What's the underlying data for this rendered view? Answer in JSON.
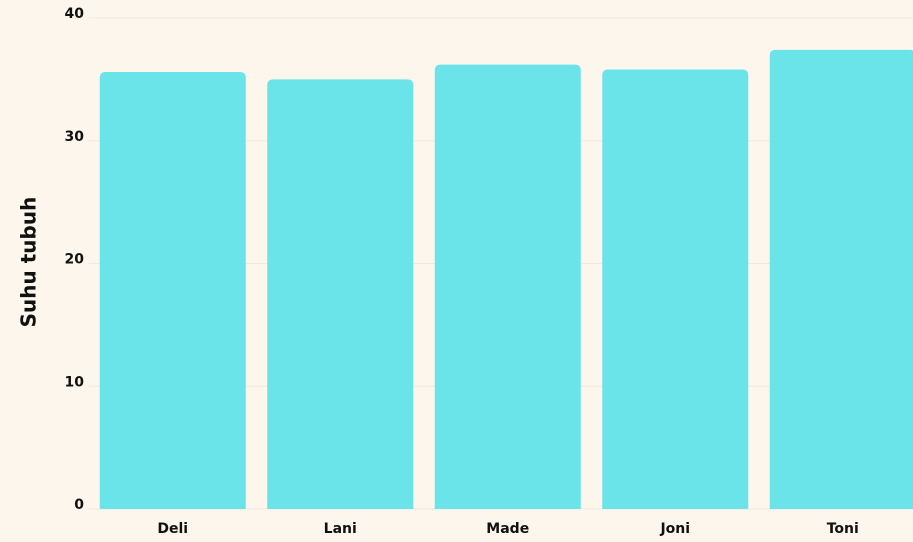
{
  "chart_data": {
    "type": "bar",
    "y_label": "Suhu tubuh",
    "categories": [
      "Deli",
      "Lani",
      "Made",
      "Joni",
      "Toni"
    ],
    "values": [
      35.6,
      35.0,
      36.2,
      35.8,
      37.4
    ],
    "color": "#6ae4e8",
    "ylim": [
      0,
      40
    ],
    "yticks": [
      0,
      10,
      20,
      30,
      40
    ],
    "grid": true
  }
}
